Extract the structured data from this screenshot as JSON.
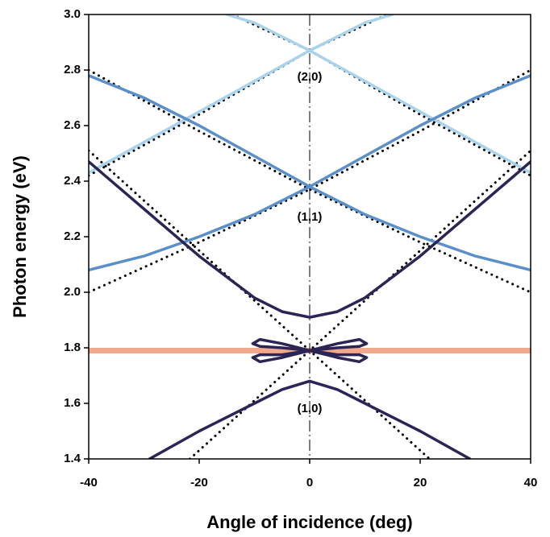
{
  "chart_data": {
    "type": "line",
    "xlabel": "Angle of incidence (deg)",
    "ylabel": "Photon energy (eV)",
    "xlim": [
      -40,
      40
    ],
    "xticks": [
      -40,
      -20,
      0,
      20,
      40
    ],
    "ylim": [
      1.4,
      3.0
    ],
    "yticks": [
      1.4,
      1.6,
      1.8,
      {
        "value": 2,
        "label": "2.0"
      },
      2.2,
      2.4,
      2.6,
      2.8,
      {
        "value": 3,
        "label": "3.0"
      }
    ],
    "annotations": [
      "(2,0)",
      "(1,1)",
      "(1,0)"
    ],
    "reference_x": 0,
    "hline": {
      "value": 1.79,
      "color": "#f2a88c"
    },
    "series": [
      {
        "color": "#000000",
        "style": "dotted",
        "x": [
          -40,
          0,
          21.7
        ],
        "values": [
          2.51,
          1.79,
          1.4
        ]
      },
      {
        "color": "#000000",
        "style": "dotted",
        "x": [
          -21.7,
          0,
          40
        ],
        "values": [
          1.4,
          1.79,
          2.51
        ]
      },
      {
        "color": "#000000",
        "style": "dotted",
        "x": [
          -40,
          -20,
          0,
          20,
          40
        ],
        "values": [
          2.0,
          2.18,
          2.37,
          2.58,
          2.8
        ]
      },
      {
        "color": "#000000",
        "style": "dotted",
        "x": [
          -40,
          -20,
          0,
          20,
          40
        ],
        "values": [
          2.8,
          2.58,
          2.37,
          2.18,
          2.0
        ]
      },
      {
        "color": "#000000",
        "style": "dotted",
        "x": [
          -40,
          -20,
          0,
          14
        ],
        "values": [
          2.42,
          2.64,
          2.87,
          3.0
        ]
      },
      {
        "color": "#000000",
        "style": "dotted",
        "x": [
          -14,
          0,
          20,
          40
        ],
        "values": [
          3.0,
          2.87,
          2.64,
          2.42
        ]
      },
      {
        "color": "#a9d3ec",
        "style": "solid",
        "x": [
          -40,
          -30,
          -20,
          -10,
          0,
          10,
          15
        ],
        "values": [
          2.43,
          2.54,
          2.65,
          2.76,
          2.87,
          2.97,
          3.0
        ]
      },
      {
        "color": "#a9d3ec",
        "style": "solid",
        "x": [
          -15,
          -10,
          0,
          10,
          20,
          30,
          40
        ],
        "values": [
          3.0,
          2.97,
          2.87,
          2.76,
          2.65,
          2.54,
          2.43
        ]
      },
      {
        "color": "#5b8fc9",
        "style": "solid",
        "x": [
          -40,
          -30,
          -20,
          -10,
          0,
          10,
          20,
          30,
          40
        ],
        "values": [
          2.78,
          2.7,
          2.6,
          2.49,
          2.38,
          2.28,
          2.2,
          2.13,
          2.08
        ]
      },
      {
        "color": "#5b8fc9",
        "style": "solid",
        "x": [
          -40,
          -30,
          -20,
          -10,
          0,
          10,
          20,
          30,
          40
        ],
        "values": [
          2.08,
          2.13,
          2.2,
          2.28,
          2.38,
          2.49,
          2.6,
          2.7,
          2.78
        ]
      },
      {
        "color": "#2b2556",
        "style": "solid",
        "x": [
          -40,
          -30,
          -20,
          -10,
          -5,
          0,
          5,
          10,
          20,
          30,
          40
        ],
        "values": [
          2.47,
          2.3,
          2.13,
          1.98,
          1.93,
          1.91,
          1.93,
          1.98,
          2.13,
          2.3,
          2.47
        ]
      },
      {
        "color": "#2b2556",
        "style": "solid",
        "x": [
          -29,
          -20,
          -10,
          -5,
          0,
          5,
          10,
          20,
          29
        ],
        "values": [
          1.4,
          1.5,
          1.6,
          1.65,
          1.68,
          1.65,
          1.6,
          1.5,
          1.4
        ]
      },
      {
        "color": "#2b2556",
        "style": "solid",
        "x": [
          0,
          -5,
          -9,
          -10.3,
          -9,
          -5,
          0,
          5,
          9,
          10.3,
          9,
          5,
          0
        ],
        "values": [
          1.79,
          1.815,
          1.83,
          1.815,
          1.805,
          1.8,
          1.79,
          1.815,
          1.83,
          1.815,
          1.805,
          1.8,
          1.79
        ]
      },
      {
        "color": "#2b2556",
        "style": "solid",
        "x": [
          0,
          -5,
          -9,
          -10.3,
          -9,
          -5,
          0,
          5,
          9,
          10.3,
          9,
          5,
          0
        ],
        "values": [
          1.79,
          1.775,
          1.775,
          1.765,
          1.75,
          1.765,
          1.79,
          1.775,
          1.775,
          1.765,
          1.75,
          1.765,
          1.79
        ]
      }
    ]
  }
}
